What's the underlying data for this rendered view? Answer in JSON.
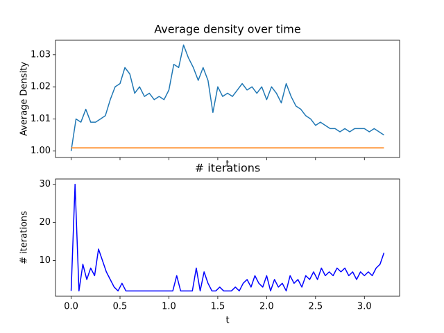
{
  "chart_data": [
    {
      "type": "line",
      "title": "Average density over time",
      "ylabel": "Average Density",
      "xlabel": "t",
      "x": [
        0,
        0.05,
        0.1,
        0.15,
        0.2,
        0.25,
        0.3,
        0.35,
        0.4,
        0.45,
        0.5,
        0.55,
        0.6,
        0.65,
        0.7,
        0.75,
        0.8,
        0.85,
        0.9,
        0.95,
        1.0,
        1.05,
        1.1,
        1.15,
        1.2,
        1.25,
        1.3,
        1.35,
        1.4,
        1.45,
        1.5,
        1.55,
        1.6,
        1.65,
        1.7,
        1.75,
        1.8,
        1.85,
        1.9,
        1.95,
        2.0,
        2.05,
        2.1,
        2.15,
        2.2,
        2.25,
        2.3,
        2.35,
        2.4,
        2.45,
        2.5,
        2.55,
        2.6,
        2.65,
        2.7,
        2.75,
        2.8,
        2.85,
        2.9,
        2.95,
        3.0,
        3.05,
        3.1,
        3.15,
        3.2
      ],
      "series": [
        {
          "color": "#1f77b4",
          "values": [
            1.0,
            1.01,
            1.009,
            1.013,
            1.009,
            1.009,
            1.01,
            1.011,
            1.016,
            1.02,
            1.021,
            1.026,
            1.024,
            1.018,
            1.02,
            1.017,
            1.018,
            1.016,
            1.017,
            1.016,
            1.019,
            1.027,
            1.026,
            1.033,
            1.029,
            1.026,
            1.022,
            1.026,
            1.022,
            1.012,
            1.02,
            1.017,
            1.018,
            1.017,
            1.019,
            1.021,
            1.019,
            1.02,
            1.018,
            1.02,
            1.016,
            1.02,
            1.018,
            1.015,
            1.021,
            1.017,
            1.014,
            1.013,
            1.011,
            1.01,
            1.008,
            1.009,
            1.008,
            1.007,
            1.007,
            1.006,
            1.007,
            1.006,
            1.007,
            1.007,
            1.007,
            1.006,
            1.007,
            1.006,
            1.005
          ]
        },
        {
          "color": "#ff7f0e",
          "values": [
            1.001,
            1.001,
            1.001,
            1.001,
            1.001,
            1.001,
            1.001,
            1.001,
            1.001,
            1.001,
            1.001,
            1.001,
            1.001,
            1.001,
            1.001,
            1.001,
            1.001,
            1.001,
            1.001,
            1.001,
            1.001,
            1.001,
            1.001,
            1.001,
            1.001,
            1.001,
            1.001,
            1.001,
            1.001,
            1.001,
            1.001,
            1.001,
            1.001,
            1.001,
            1.001,
            1.001,
            1.001,
            1.001,
            1.001,
            1.001,
            1.001,
            1.001,
            1.001,
            1.001,
            1.001,
            1.001,
            1.001,
            1.001,
            1.001,
            1.001,
            1.001,
            1.001,
            1.001,
            1.001,
            1.001,
            1.001,
            1.001,
            1.001,
            1.001,
            1.001,
            1.001,
            1.001,
            1.001,
            1.001,
            1.001
          ]
        }
      ],
      "xlim": [
        -0.16,
        3.36
      ],
      "ylim": [
        0.998,
        1.0345
      ],
      "yticks": [
        {
          "value": 1.0,
          "label": "1.00"
        },
        {
          "value": 1.01,
          "label": "1.01"
        },
        {
          "value": 1.02,
          "label": "1.02"
        },
        {
          "value": 1.03,
          "label": "1.03"
        }
      ]
    },
    {
      "type": "line",
      "title": "# iterations",
      "ylabel": "# iterations",
      "xlabel": "t",
      "x": [
        0,
        0.04,
        0.08,
        0.12,
        0.16,
        0.2,
        0.24,
        0.28,
        0.32,
        0.36,
        0.4,
        0.44,
        0.48,
        0.52,
        0.56,
        0.6,
        0.64,
        0.68,
        0.72,
        0.76,
        0.8,
        0.84,
        0.88,
        0.92,
        0.96,
        1.0,
        1.04,
        1.08,
        1.12,
        1.16,
        1.2,
        1.24,
        1.28,
        1.32,
        1.36,
        1.4,
        1.44,
        1.48,
        1.52,
        1.56,
        1.6,
        1.64,
        1.68,
        1.72,
        1.76,
        1.8,
        1.84,
        1.88,
        1.92,
        1.96,
        2.0,
        2.04,
        2.08,
        2.12,
        2.16,
        2.2,
        2.24,
        2.28,
        2.32,
        2.36,
        2.4,
        2.44,
        2.48,
        2.52,
        2.56,
        2.6,
        2.64,
        2.68,
        2.72,
        2.76,
        2.8,
        2.84,
        2.88,
        2.92,
        2.96,
        3.0,
        3.04,
        3.08,
        3.12,
        3.16,
        3.2
      ],
      "series": [
        {
          "color": "#0000ff",
          "values": [
            2,
            30,
            2,
            9,
            5,
            8,
            6,
            13,
            10,
            7,
            5,
            3,
            2,
            4,
            2,
            2,
            2,
            2,
            2,
            2,
            2,
            2,
            2,
            2,
            2,
            2,
            2,
            6,
            2,
            2,
            2,
            2,
            8,
            2,
            7,
            4,
            2,
            2,
            3,
            2,
            2,
            2,
            3,
            2,
            4,
            5,
            3,
            6,
            4,
            3,
            6,
            2,
            5,
            3,
            4,
            2,
            6,
            4,
            5,
            3,
            6,
            5,
            7,
            5,
            8,
            6,
            7,
            6,
            8,
            7,
            8,
            6,
            7,
            5,
            7,
            6,
            7,
            6,
            8,
            9,
            12
          ]
        }
      ],
      "xlim": [
        -0.16,
        3.36
      ],
      "ylim": [
        0.6,
        31.4
      ],
      "xticks": [
        {
          "value": 0,
          "label": "0.0"
        },
        0.5,
        {
          "value": 1,
          "label": "1.0"
        },
        1.5,
        {
          "value": 2,
          "label": "2.0"
        },
        2.5,
        {
          "value": 3,
          "label": "3.0"
        }
      ],
      "yticks": [
        10,
        20,
        30
      ]
    }
  ]
}
